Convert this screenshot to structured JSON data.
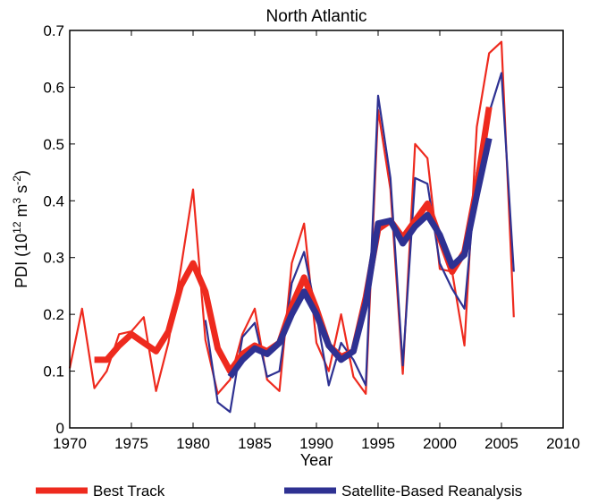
{
  "chart_data": {
    "type": "line",
    "title": "North Atlantic",
    "xlabel": "Year",
    "ylabel": {
      "base": "PDI (10",
      "sup1": "12",
      "mid1": " m",
      "sup2": "3",
      "mid2": " s",
      "sup3": "-2",
      "end": ")"
    },
    "xlim": [
      1970,
      2010
    ],
    "ylim": [
      0,
      0.7
    ],
    "xticks": [
      1970,
      1975,
      1980,
      1985,
      1990,
      1995,
      2000,
      2005,
      2010
    ],
    "yticks": [
      0,
      0.1,
      0.2,
      0.3,
      0.4,
      0.5,
      0.6,
      0.7
    ],
    "ytick_labels": [
      "0",
      "0.1",
      "0.2",
      "0.3",
      "0.4",
      "0.5",
      "0.6",
      "0.7"
    ],
    "grid": false,
    "legend_position": "bottom",
    "legend": [
      {
        "name": "Best Track",
        "color": "#ee2a1e"
      },
      {
        "name": "Satellite-Based Reanalysis",
        "color": "#2e3192"
      }
    ],
    "series": [
      {
        "name": "Best Track",
        "kind": "annual",
        "color": "#ee2a1e",
        "x": [
          1970,
          1971,
          1972,
          1973,
          1974,
          1975,
          1976,
          1977,
          1978,
          1979,
          1980,
          1981,
          1982,
          1983,
          1984,
          1985,
          1986,
          1987,
          1988,
          1989,
          1990,
          1991,
          1992,
          1993,
          1994,
          1995,
          1996,
          1997,
          1998,
          1999,
          2000,
          2001,
          2002,
          2003,
          2004,
          2005,
          2006
        ],
        "values": [
          0.105,
          0.21,
          0.07,
          0.1,
          0.165,
          0.17,
          0.195,
          0.065,
          0.15,
          0.28,
          0.42,
          0.155,
          0.06,
          0.085,
          0.165,
          0.21,
          0.085,
          0.065,
          0.29,
          0.36,
          0.15,
          0.1,
          0.2,
          0.09,
          0.06,
          0.56,
          0.42,
          0.095,
          0.5,
          0.475,
          0.28,
          0.275,
          0.145,
          0.53,
          0.66,
          0.68,
          0.195
        ]
      },
      {
        "name": "Best Track",
        "kind": "smoothed",
        "color": "#ee2a1e",
        "x": [
          1972,
          1973,
          1974,
          1975,
          1976,
          1977,
          1978,
          1979,
          1980,
          1981,
          1982,
          1983,
          1984,
          1985,
          1986,
          1987,
          1988,
          1989,
          1990,
          1991,
          1992,
          1993,
          1994,
          1995,
          1996,
          1997,
          1998,
          1999,
          2000,
          2001,
          2002,
          2003,
          2004
        ],
        "values": [
          0.12,
          0.12,
          0.145,
          0.165,
          0.15,
          0.135,
          0.17,
          0.25,
          0.29,
          0.24,
          0.14,
          0.1,
          0.13,
          0.145,
          0.135,
          0.15,
          0.215,
          0.265,
          0.21,
          0.145,
          0.125,
          0.135,
          0.23,
          0.35,
          0.365,
          0.335,
          0.365,
          0.395,
          0.335,
          0.275,
          0.31,
          0.425,
          0.565
        ]
      },
      {
        "name": "Satellite-Based Reanalysis",
        "kind": "annual",
        "color": "#2e3192",
        "x": [
          1981,
          1982,
          1983,
          1984,
          1985,
          1986,
          1987,
          1988,
          1989,
          1990,
          1991,
          1992,
          1993,
          1994,
          1995,
          1996,
          1997,
          1998,
          1999,
          2000,
          2001,
          2002,
          2003,
          2004,
          2005,
          2006
        ],
        "values": [
          0.19,
          0.045,
          0.028,
          0.16,
          0.185,
          0.09,
          0.1,
          0.255,
          0.31,
          0.2,
          0.075,
          0.15,
          0.12,
          0.075,
          0.585,
          0.44,
          0.11,
          0.44,
          0.43,
          0.29,
          0.245,
          0.21,
          0.45,
          0.555,
          0.625,
          0.275
        ]
      },
      {
        "name": "Satellite-Based Reanalysis",
        "kind": "smoothed",
        "color": "#2e3192",
        "x": [
          1983,
          1984,
          1985,
          1986,
          1987,
          1988,
          1989,
          1990,
          1991,
          1992,
          1993,
          1994,
          1995,
          1996,
          1997,
          1998,
          1999,
          2000,
          2001,
          2002,
          2003,
          2004
        ],
        "values": [
          0.09,
          0.12,
          0.14,
          0.13,
          0.15,
          0.2,
          0.24,
          0.2,
          0.145,
          0.12,
          0.135,
          0.22,
          0.36,
          0.365,
          0.325,
          0.355,
          0.375,
          0.34,
          0.285,
          0.305,
          0.41,
          0.51
        ]
      }
    ]
  }
}
